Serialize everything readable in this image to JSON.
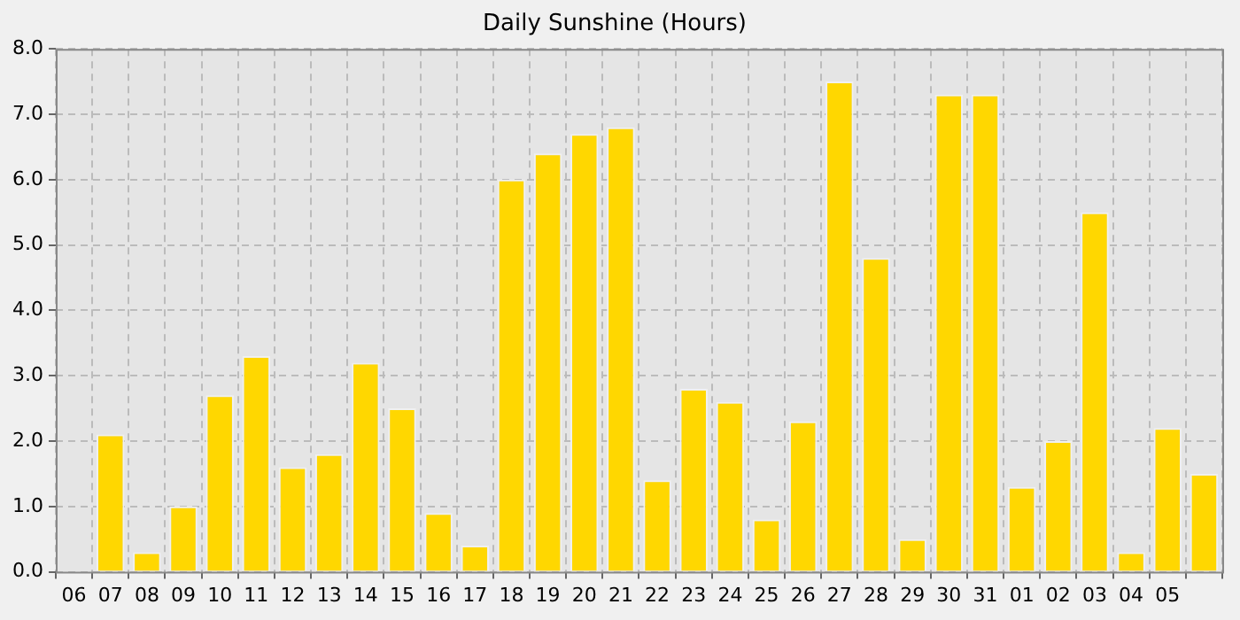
{
  "chart_data": {
    "type": "bar",
    "title": "Daily Sunshine (Hours)",
    "categories": [
      "06",
      "07",
      "08",
      "09",
      "10",
      "11",
      "12",
      "13",
      "14",
      "15",
      "16",
      "17",
      "18",
      "19",
      "20",
      "21",
      "22",
      "23",
      "24",
      "25",
      "26",
      "27",
      "28",
      "29",
      "30",
      "31",
      "01",
      "02",
      "03",
      "04",
      "05",
      null
    ],
    "values": [
      0,
      2.1,
      0.3,
      1.0,
      2.7,
      3.3,
      1.6,
      1.8,
      3.2,
      2.5,
      0.9,
      0.4,
      6.0,
      6.4,
      6.7,
      6.8,
      1.4,
      2.8,
      2.6,
      0.8,
      2.3,
      7.5,
      4.8,
      0.5,
      7.3,
      7.3,
      1.3,
      2.0,
      5.5,
      0.3,
      2.2,
      1.5
    ],
    "color": "#ffd700",
    "ylim": [
      0,
      8
    ],
    "yticks": [
      {
        "value": 0,
        "label": "0.0"
      },
      {
        "value": 1,
        "label": "1.0"
      },
      {
        "value": 2,
        "label": "2.0"
      },
      {
        "value": 3,
        "label": "3.0"
      },
      {
        "value": 4,
        "label": "4.0"
      },
      {
        "value": 5,
        "label": "5.0"
      },
      {
        "value": 6,
        "label": "6.0"
      },
      {
        "value": 7,
        "label": "7.0"
      },
      {
        "value": 8,
        "label": "8.0"
      }
    ],
    "grid": true
  }
}
